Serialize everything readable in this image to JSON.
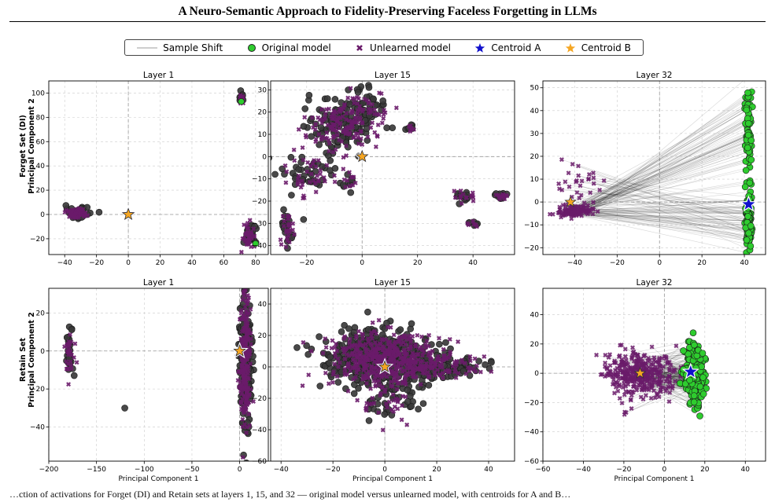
{
  "paper": {
    "running_title": "A Neuro-Semantic Approach to Fidelity-Preserving Faceless Forgetting in LLMs",
    "caption_fragment": "…ction of activations for Forget (DI) and Retain sets at layers 1, 15, and 32 — original model versus unlearned model, with centroids for A and B…"
  },
  "legend": {
    "items": [
      {
        "label": "Sample Shift",
        "marker": "line",
        "color": "#9e9e9e"
      },
      {
        "label": "Original model",
        "marker": "circle",
        "color": "#2ecc2e"
      },
      {
        "label": "Unlearned model",
        "marker": "x",
        "color": "#6a1b6a"
      },
      {
        "label": "Centroid A",
        "marker": "star",
        "color": "#1010cc"
      },
      {
        "label": "Centroid B",
        "marker": "star",
        "color": "#f5a623"
      }
    ]
  },
  "row_labels": [
    {
      "line1": "Forget Set (DI)",
      "line2": "Principal Component 2"
    },
    {
      "line1": "Retain Set",
      "line2": "Principal Component 2"
    }
  ],
  "x_axis_label": "Principal Component 1",
  "colors": {
    "original_fill": "#2ecc2e",
    "dark_point": "#3a3a3a",
    "unlearned": "#6a1b6a",
    "centroid_a": "#1010cc",
    "centroid_b": "#f5a623",
    "shift_line": "#000000"
  },
  "chart_data": [
    {
      "type": "scatter",
      "title": "Layer 1",
      "row": "Forget Set (DI)",
      "xlim": [
        -50,
        88
      ],
      "ylim": [
        -33,
        110
      ],
      "xticks": [
        -40,
        -20,
        0,
        20,
        40,
        60,
        80
      ],
      "yticks": [
        -20,
        0,
        20,
        40,
        60,
        80,
        100
      ],
      "clusters": [
        {
          "cx": -32,
          "cy": 1,
          "sx": 3.5,
          "sy": 2.2,
          "n": 60,
          "kind": "both"
        },
        {
          "cx": 71,
          "cy": 96,
          "sx": 0.7,
          "sy": 1.8,
          "n": 14,
          "kind": "both"
        },
        {
          "cx": 76,
          "cy": -17,
          "sx": 1.8,
          "sy": 4,
          "n": 40,
          "kind": "both"
        }
      ],
      "centroid_a": [
        0,
        0
      ],
      "centroid_b": [
        0,
        0
      ],
      "shift": false
    },
    {
      "type": "scatter",
      "title": "Layer 15",
      "row": "Forget Set (DI)",
      "xlim": [
        -33,
        55
      ],
      "ylim": [
        -44,
        34
      ],
      "xticks": [
        -20,
        0,
        20,
        40
      ],
      "yticks": [
        -40,
        -30,
        -20,
        -10,
        0,
        10,
        20,
        30
      ],
      "clusters": [
        {
          "cx": -8,
          "cy": 14,
          "sx": 6,
          "sy": 6,
          "n": 120,
          "kind": "both"
        },
        {
          "cx": 2,
          "cy": 22,
          "sx": 4,
          "sy": 5,
          "n": 40,
          "kind": "both"
        },
        {
          "cx": -20,
          "cy": -8,
          "sx": 5,
          "sy": 5,
          "n": 40,
          "kind": "both"
        },
        {
          "cx": -27,
          "cy": -33,
          "sx": 1,
          "sy": 4,
          "n": 25,
          "kind": "both"
        },
        {
          "cx": 37,
          "cy": -18,
          "sx": 2,
          "sy": 1.5,
          "n": 14,
          "kind": "both"
        },
        {
          "cx": 50,
          "cy": -18,
          "sx": 1.2,
          "sy": 1,
          "n": 12,
          "kind": "both"
        },
        {
          "cx": 40,
          "cy": -30,
          "sx": 1,
          "sy": 1,
          "n": 6,
          "kind": "both"
        },
        {
          "cx": 17,
          "cy": 13,
          "sx": 1,
          "sy": 1,
          "n": 6,
          "kind": "both"
        },
        {
          "cx": -5,
          "cy": -12,
          "sx": 1.2,
          "sy": 2.5,
          "n": 10,
          "kind": "both"
        }
      ],
      "centroid_a": [
        0,
        0
      ],
      "centroid_b": [
        0,
        0
      ],
      "shift": false
    },
    {
      "type": "scatter",
      "title": "Layer 32",
      "row": "Forget Set (DI)",
      "xlim": [
        -55,
        50
      ],
      "ylim": [
        -23,
        53
      ],
      "xticks": [
        -40,
        -20,
        0,
        20,
        40
      ],
      "yticks": [
        -20,
        -10,
        0,
        10,
        20,
        30,
        40,
        50
      ],
      "original": [
        {
          "cx": 42,
          "cy": 32,
          "sx": 0.8,
          "sy": 9,
          "n": 70
        },
        {
          "cx": 42,
          "cy": -8,
          "sx": 0.8,
          "sy": 6,
          "n": 120
        }
      ],
      "unlearned": [
        {
          "cx": -40,
          "cy": -4,
          "sx": 4,
          "sy": 1.2,
          "n": 120
        },
        {
          "cx": -38,
          "cy": 7,
          "sx": 6,
          "sy": 5,
          "n": 30
        }
      ],
      "centroid_a": [
        42,
        -1
      ],
      "centroid_b": [
        -42,
        0
      ],
      "shift": true
    },
    {
      "type": "scatter",
      "title": "Layer 1",
      "row": "Retain Set",
      "xlim": [
        -200,
        30
      ],
      "ylim": [
        -58,
        33
      ],
      "xticks": [
        -200,
        -150,
        -100,
        -50,
        0
      ],
      "yticks": [
        -40,
        -20,
        0,
        20
      ],
      "clusters": [
        {
          "cx": 6,
          "cy": -5,
          "sx": 3,
          "sy": 17,
          "n": 220,
          "kind": "both"
        },
        {
          "cx": -178,
          "cy": 0,
          "sx": 2.5,
          "sy": 6,
          "n": 28,
          "kind": "both"
        },
        {
          "cx": -120,
          "cy": -30,
          "sx": 0.3,
          "sy": 0.3,
          "n": 1,
          "kind": "dark"
        }
      ],
      "centroid_a": [
        0,
        0
      ],
      "centroid_b": [
        0,
        0
      ],
      "shift": false
    },
    {
      "type": "scatter",
      "title": "Layer 15",
      "row": "Retain Set",
      "xlim": [
        -44,
        50
      ],
      "ylim": [
        -60,
        50
      ],
      "xticks": [
        -40,
        -20,
        0,
        20,
        40
      ],
      "yticks": [
        -60,
        -40,
        -20,
        0,
        20,
        40
      ],
      "clusters": [
        {
          "cx": -2,
          "cy": 5,
          "sx": 10,
          "sy": 9,
          "n": 420,
          "kind": "both"
        },
        {
          "cx": 20,
          "cy": 0,
          "sx": 9,
          "sy": 4,
          "n": 100,
          "kind": "both"
        },
        {
          "cx": 0,
          "cy": -22,
          "sx": 6,
          "sy": 6,
          "n": 40,
          "kind": "both"
        }
      ],
      "centroid_a": [
        0,
        0
      ],
      "centroid_b": [
        0,
        0
      ],
      "shift": false
    },
    {
      "type": "scatter",
      "title": "Layer 32",
      "row": "Retain Set",
      "xlim": [
        -60,
        50
      ],
      "ylim": [
        -60,
        58
      ],
      "xticks": [
        -60,
        -40,
        -20,
        0,
        20,
        40
      ],
      "yticks": [
        -60,
        -40,
        -20,
        0,
        20,
        40
      ],
      "original": [
        {
          "cx": 15,
          "cy": -2,
          "sx": 2.3,
          "sy": 10,
          "n": 220
        }
      ],
      "unlearned": [
        {
          "cx": -12,
          "cy": 0,
          "sx": 9,
          "sy": 8,
          "n": 360
        }
      ],
      "centroid_a": [
        13,
        1
      ],
      "centroid_b": [
        -12,
        0
      ],
      "shift": true
    }
  ]
}
